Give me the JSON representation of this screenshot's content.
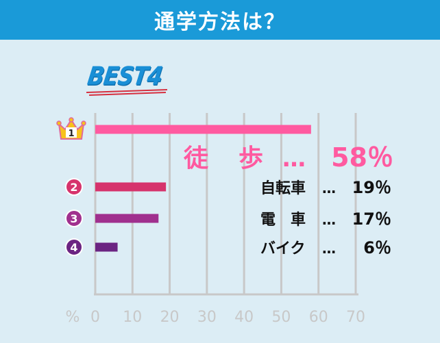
{
  "header": {
    "title": "通学方法は？"
  },
  "badge": {
    "label": "BEST4"
  },
  "colors": {
    "header": "#1a9ad8",
    "background": "#dcedf5",
    "rank1": "#ff5aa0",
    "rank2": "#d6336c",
    "rank3": "#a0308e",
    "rank4": "#6b2482",
    "axis": "#c8c8c8"
  },
  "chart_data": {
    "type": "bar",
    "orientation": "horizontal",
    "xlim": [
      0,
      70
    ],
    "x_unit_label": "%",
    "ticks": [
      "0",
      "10",
      "20",
      "30",
      "40",
      "50",
      "60",
      "70"
    ],
    "grid": true,
    "items": [
      {
        "rank": "1",
        "rank_icon": "crown-icon",
        "label": "徒　歩",
        "dots": "…",
        "value": 58,
        "value_text": "58％"
      },
      {
        "rank": "2",
        "rank_icon": "circle-number-icon",
        "label": "自転車",
        "dots": "…",
        "value": 19,
        "value_text": "19％"
      },
      {
        "rank": "3",
        "rank_icon": "circle-number-icon",
        "label": "電　車",
        "dots": "…",
        "value": 17,
        "value_text": "17％"
      },
      {
        "rank": "4",
        "rank_icon": "circle-number-icon",
        "label": "バイク",
        "dots": "…",
        "value": 6,
        "value_text": "6％"
      }
    ]
  }
}
